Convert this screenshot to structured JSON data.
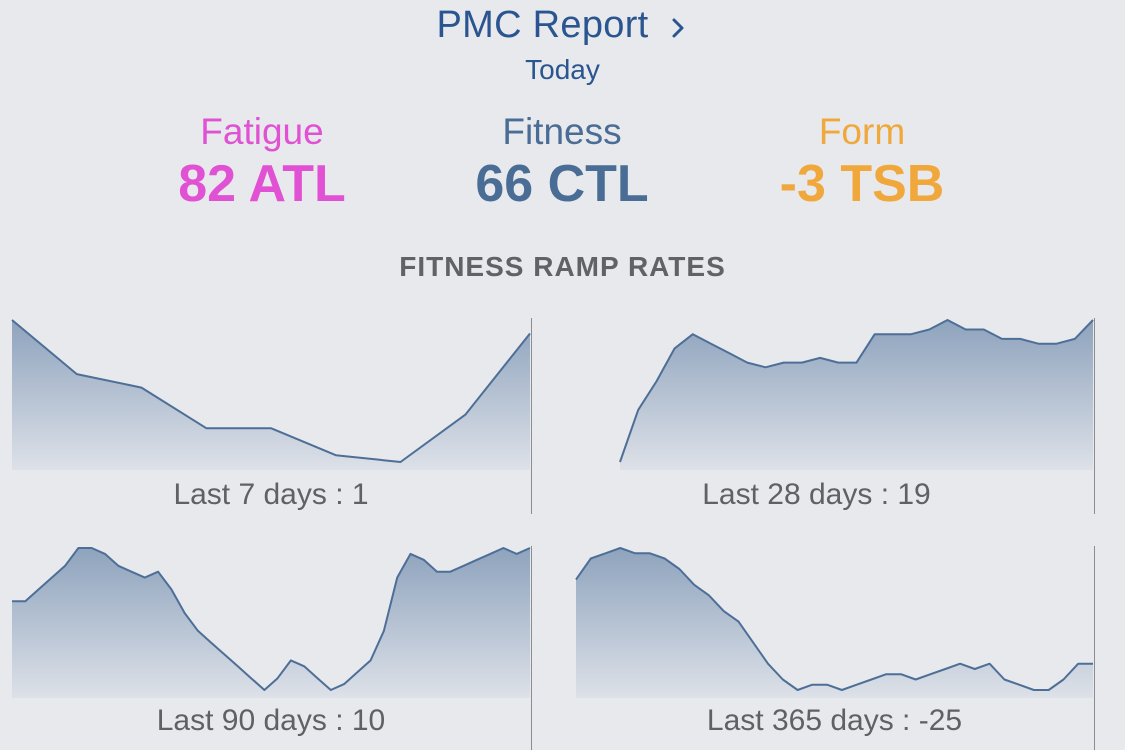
{
  "header": {
    "title": "PMC Report",
    "subtitle": "Today"
  },
  "metrics": {
    "fatigue": {
      "label": "Fatigue",
      "value": "82 ATL",
      "color": "#e052d3"
    },
    "fitness": {
      "label": "Fitness",
      "value": "66 CTL",
      "color": "#4a6d96"
    },
    "form": {
      "label": "Form",
      "value": "-3 TSB",
      "color": "#f0a83c"
    }
  },
  "section": {
    "title": "FITNESS RAMP RATES"
  },
  "colors": {
    "line": "#4d6f97",
    "fill_top": "#8ea3bd",
    "fill_bottom": "#dde1e8",
    "accent": "#2a5590"
  },
  "chart_data": [
    {
      "type": "area",
      "caption": "Last 7 days : 1",
      "values": [
        60,
        56,
        55,
        52,
        52,
        50,
        49.5,
        53,
        59
      ]
    },
    {
      "type": "area",
      "caption": "Last 28 days : 19",
      "values": [
        47,
        58,
        64,
        71,
        74,
        72,
        70,
        68,
        67,
        68,
        68,
        69,
        68,
        68,
        74,
        74,
        74,
        75,
        77,
        75,
        75,
        73,
        73,
        72,
        72,
        73,
        77
      ]
    },
    {
      "type": "area",
      "caption": "Last 90 days : 10",
      "values": [
        62,
        62,
        64,
        66,
        68,
        71,
        71,
        70,
        68,
        67,
        66,
        67,
        64,
        60,
        57,
        55,
        53,
        51,
        49,
        47,
        49,
        52,
        51,
        49,
        47,
        48,
        50,
        52,
        57,
        66,
        70,
        69,
        67,
        67,
        68,
        69,
        70,
        71,
        70,
        71
      ]
    },
    {
      "type": "area",
      "caption": "Last 365 days : -25",
      "values": [
        92,
        96,
        97,
        98,
        97,
        97,
        96,
        94,
        91,
        89,
        86,
        84,
        80,
        76,
        73,
        71,
        72,
        72,
        71,
        72,
        73,
        74,
        74,
        73,
        74,
        75,
        76,
        75,
        76,
        73,
        72,
        71,
        71,
        73,
        76,
        76
      ]
    }
  ]
}
